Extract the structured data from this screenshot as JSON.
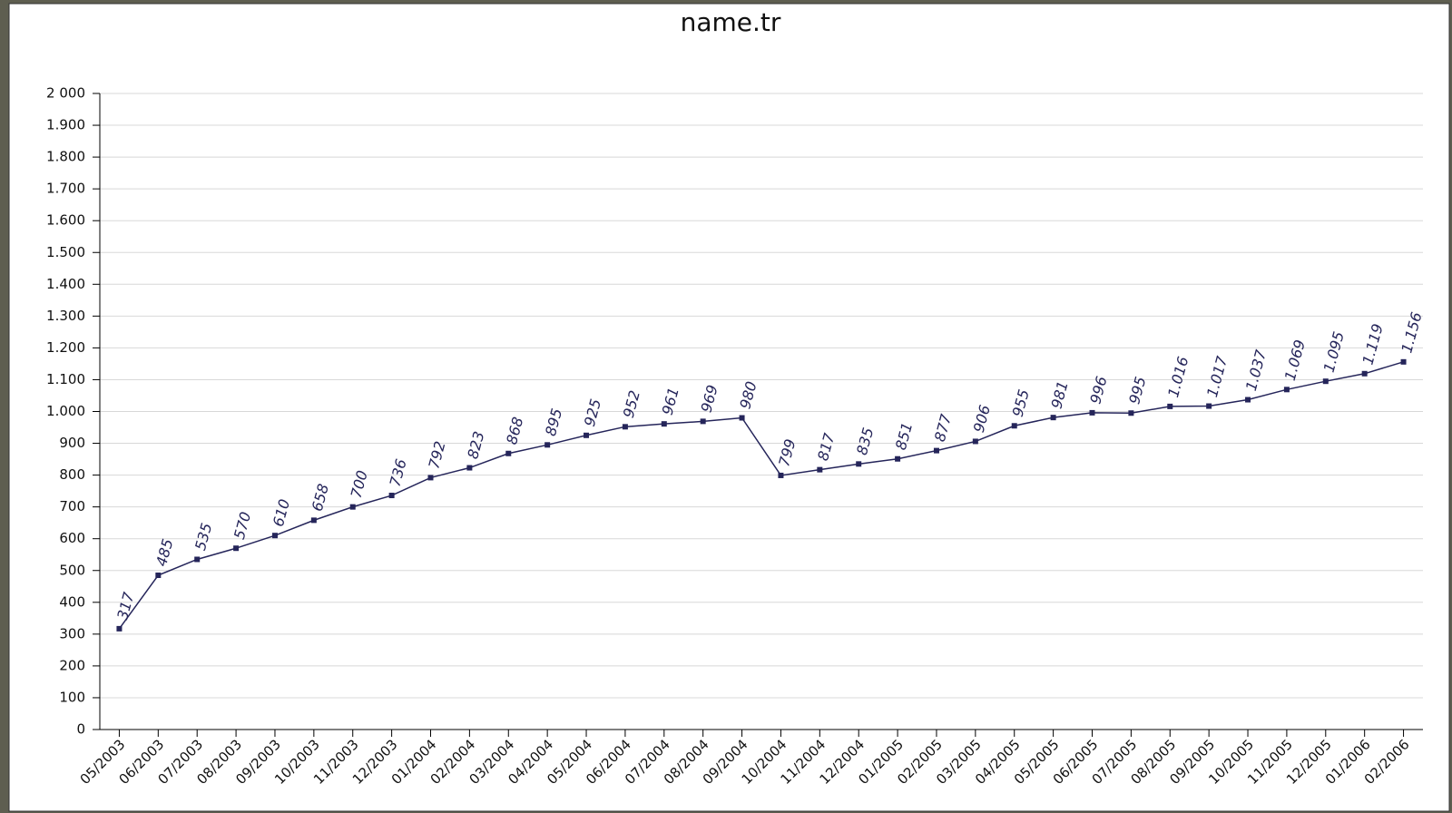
{
  "chart_data": {
    "type": "line",
    "title": "name.tr",
    "categories": [
      "05/2003",
      "06/2003",
      "07/2003",
      "08/2003",
      "09/2003",
      "10/2003",
      "11/2003",
      "12/2003",
      "01/2004",
      "02/2004",
      "03/2004",
      "04/2004",
      "05/2004",
      "06/2004",
      "07/2004",
      "08/2004",
      "09/2004",
      "10/2004",
      "11/2004",
      "12/2004",
      "01/2005",
      "02/2005",
      "03/2005",
      "04/2005",
      "05/2005",
      "06/2005",
      "07/2005",
      "08/2005",
      "09/2005",
      "10/2005",
      "11/2005",
      "12/2005",
      "01/2006",
      "02/2006"
    ],
    "series": [
      {
        "color": "#25255a",
        "values": [
          317,
          485,
          535,
          570,
          610,
          658,
          700,
          736,
          792,
          823,
          868,
          895,
          925,
          952,
          961,
          969,
          980,
          799,
          817,
          835,
          851,
          877,
          906,
          955,
          981,
          996,
          995,
          1016,
          1017,
          1037,
          1069,
          1095,
          1119,
          1156
        ],
        "value_labels": [
          "317",
          "485",
          "535",
          "570",
          "610",
          "658",
          "700",
          "736",
          "792",
          "823",
          "868",
          "895",
          "925",
          "952",
          "961",
          "969",
          "980",
          "799",
          "817",
          "835",
          "851",
          "877",
          "906",
          "955",
          "981",
          "996",
          "995",
          "1.016",
          "1.017",
          "1.037",
          "1.069",
          "1.095",
          "1.119",
          "1.156"
        ]
      }
    ],
    "ylim": [
      0,
      2000
    ],
    "yticks": [
      0,
      100,
      200,
      300,
      400,
      500,
      600,
      700,
      800,
      900,
      {
        "value": 1000,
        "label": "1.000"
      },
      {
        "value": 1100,
        "label": "1.100"
      },
      {
        "value": 1200,
        "label": "1.200"
      },
      {
        "value": 1300,
        "label": "1.300"
      },
      {
        "value": 1400,
        "label": "1.400"
      },
      {
        "value": 1500,
        "label": "1.500"
      },
      {
        "value": 1600,
        "label": "1.600"
      },
      {
        "value": 1700,
        "label": "1.700"
      },
      {
        "value": 1800,
        "label": "1.800"
      },
      {
        "value": 1900,
        "label": "1.900"
      },
      {
        "value": 2000,
        "label": "2 000"
      }
    ],
    "grid": true
  }
}
